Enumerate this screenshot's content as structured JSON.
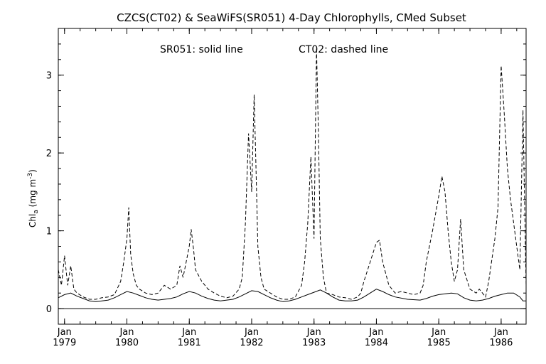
{
  "chart_data": {
    "type": "line",
    "title": "CZCS(CT02) & SeaWiFS(SR051) 4-Day Chlorophylls, CMed Subset",
    "annotation_solid": "SR051: solid line",
    "annotation_dashed": "CT02: dashed line",
    "ylabel": "Chl",
    "ylabel_sub": "a",
    "ylabel_units": "(mg m",
    "ylabel_sup": "-3",
    "ylabel_close": ")",
    "ylim": [
      -0.2,
      3.6
    ],
    "xlim": [
      1978.9,
      1986.4
    ],
    "yticks": [
      0,
      1,
      2,
      3
    ],
    "ytick_labels": [
      "0",
      "1",
      "2",
      "3"
    ],
    "xticks": [
      1979,
      1980,
      1981,
      1982,
      1983,
      1984,
      1985,
      1986
    ],
    "xtick_month_labels": [
      "Jan",
      "Jan",
      "Jan",
      "Jan",
      "Jan",
      "Jan",
      "Jan",
      "Jan"
    ],
    "xtick_year_labels": [
      "1979",
      "1980",
      "1981",
      "1982",
      "1983",
      "1984",
      "1985",
      "1986"
    ],
    "reference_line_y": 0,
    "series": [
      {
        "name": "SR051",
        "style": "solid",
        "x": [
          1978.9,
          1979.0,
          1979.1,
          1979.2,
          1979.3,
          1979.4,
          1979.5,
          1979.6,
          1979.7,
          1979.8,
          1979.9,
          1980.0,
          1980.1,
          1980.2,
          1980.3,
          1980.4,
          1980.5,
          1980.6,
          1980.7,
          1980.8,
          1980.9,
          1981.0,
          1981.1,
          1981.2,
          1981.3,
          1981.4,
          1981.5,
          1981.6,
          1981.7,
          1981.8,
          1981.9,
          1982.0,
          1982.1,
          1982.2,
          1982.3,
          1982.4,
          1982.5,
          1982.6,
          1982.7,
          1982.8,
          1982.9,
          1983.0,
          1983.1,
          1983.2,
          1983.3,
          1983.4,
          1983.5,
          1983.6,
          1983.7,
          1983.8,
          1983.9,
          1984.0,
          1984.1,
          1984.2,
          1984.3,
          1984.5,
          1984.7,
          1984.8,
          1984.9,
          1985.0,
          1985.2,
          1985.3,
          1985.4,
          1985.5,
          1985.6,
          1985.7,
          1985.8,
          1985.9,
          1986.0,
          1986.1,
          1986.2,
          1986.3,
          1986.35,
          1986.4
        ],
        "values": [
          0.14,
          0.18,
          0.2,
          0.16,
          0.13,
          0.1,
          0.09,
          0.1,
          0.11,
          0.14,
          0.18,
          0.22,
          0.2,
          0.17,
          0.14,
          0.12,
          0.11,
          0.12,
          0.13,
          0.15,
          0.19,
          0.22,
          0.2,
          0.16,
          0.13,
          0.11,
          0.1,
          0.11,
          0.12,
          0.15,
          0.19,
          0.23,
          0.22,
          0.18,
          0.14,
          0.11,
          0.09,
          0.1,
          0.12,
          0.15,
          0.18,
          0.21,
          0.24,
          0.2,
          0.15,
          0.11,
          0.1,
          0.1,
          0.11,
          0.15,
          0.2,
          0.25,
          0.22,
          0.18,
          0.15,
          0.12,
          0.11,
          0.13,
          0.16,
          0.18,
          0.2,
          0.19,
          0.14,
          0.11,
          0.1,
          0.11,
          0.13,
          0.16,
          0.18,
          0.2,
          0.2,
          0.15,
          0.1,
          0.1
        ]
      },
      {
        "name": "CT02",
        "style": "dashed",
        "x": [
          1978.9,
          1978.95,
          1979.0,
          1979.05,
          1979.1,
          1979.15,
          1979.2,
          1979.3,
          1979.4,
          1979.5,
          1979.6,
          1979.7,
          1979.8,
          1979.9,
          1979.95,
          1980.0,
          1980.03,
          1980.06,
          1980.1,
          1980.15,
          1980.2,
          1980.3,
          1980.4,
          1980.5,
          1980.6,
          1980.7,
          1980.8,
          1980.85,
          1980.9,
          1980.95,
          1981.0,
          1981.03,
          1981.07,
          1981.1,
          1981.2,
          1981.3,
          1981.4,
          1981.5,
          1981.6,
          1981.7,
          1981.8,
          1981.85,
          1981.9,
          1981.95,
          1982.0,
          1982.04,
          1982.07,
          1982.1,
          1982.15,
          1982.2,
          1982.3,
          1982.4,
          1982.5,
          1982.6,
          1982.7,
          1982.8,
          1982.85,
          1982.9,
          1982.95,
          1983.0,
          1983.04,
          1983.07,
          1983.1,
          1983.15,
          1983.2,
          1983.3,
          1983.4,
          1983.5,
          1983.6,
          1983.7,
          1983.75,
          1983.8,
          1983.9,
          1984.0,
          1984.05,
          1984.1,
          1984.2,
          1984.3,
          1984.4,
          1984.5,
          1984.6,
          1984.7,
          1984.75,
          1984.8,
          1984.9,
          1985.0,
          1985.05,
          1985.1,
          1985.15,
          1985.2,
          1985.25,
          1985.3,
          1985.35,
          1985.4,
          1985.5,
          1985.6,
          1985.65,
          1985.7,
          1985.75,
          1985.8,
          1985.9,
          1985.95,
          1986.0,
          1986.05,
          1986.1,
          1986.15,
          1986.2,
          1986.25,
          1986.3,
          1986.35,
          1986.4
        ],
        "values": [
          0.5,
          0.3,
          0.68,
          0.3,
          0.55,
          0.25,
          0.2,
          0.15,
          0.12,
          0.12,
          0.14,
          0.15,
          0.18,
          0.35,
          0.6,
          0.9,
          1.3,
          0.7,
          0.45,
          0.3,
          0.25,
          0.2,
          0.18,
          0.2,
          0.3,
          0.25,
          0.3,
          0.55,
          0.4,
          0.6,
          0.8,
          1.02,
          0.75,
          0.5,
          0.35,
          0.25,
          0.2,
          0.16,
          0.14,
          0.16,
          0.25,
          0.4,
          1.1,
          2.25,
          1.5,
          2.75,
          1.8,
          0.8,
          0.4,
          0.25,
          0.2,
          0.15,
          0.12,
          0.12,
          0.15,
          0.3,
          0.6,
          1.1,
          1.95,
          0.9,
          3.35,
          2.3,
          0.9,
          0.4,
          0.2,
          0.18,
          0.15,
          0.14,
          0.12,
          0.15,
          0.2,
          0.35,
          0.6,
          0.85,
          0.88,
          0.6,
          0.3,
          0.2,
          0.22,
          0.2,
          0.18,
          0.2,
          0.3,
          0.6,
          1.0,
          1.45,
          1.7,
          1.5,
          1.0,
          0.6,
          0.35,
          0.5,
          1.15,
          0.5,
          0.25,
          0.2,
          0.25,
          0.2,
          0.15,
          0.35,
          0.9,
          1.3,
          3.12,
          2.5,
          1.8,
          1.4,
          1.1,
          0.8,
          0.5,
          2.55,
          0.3
        ]
      }
    ]
  }
}
